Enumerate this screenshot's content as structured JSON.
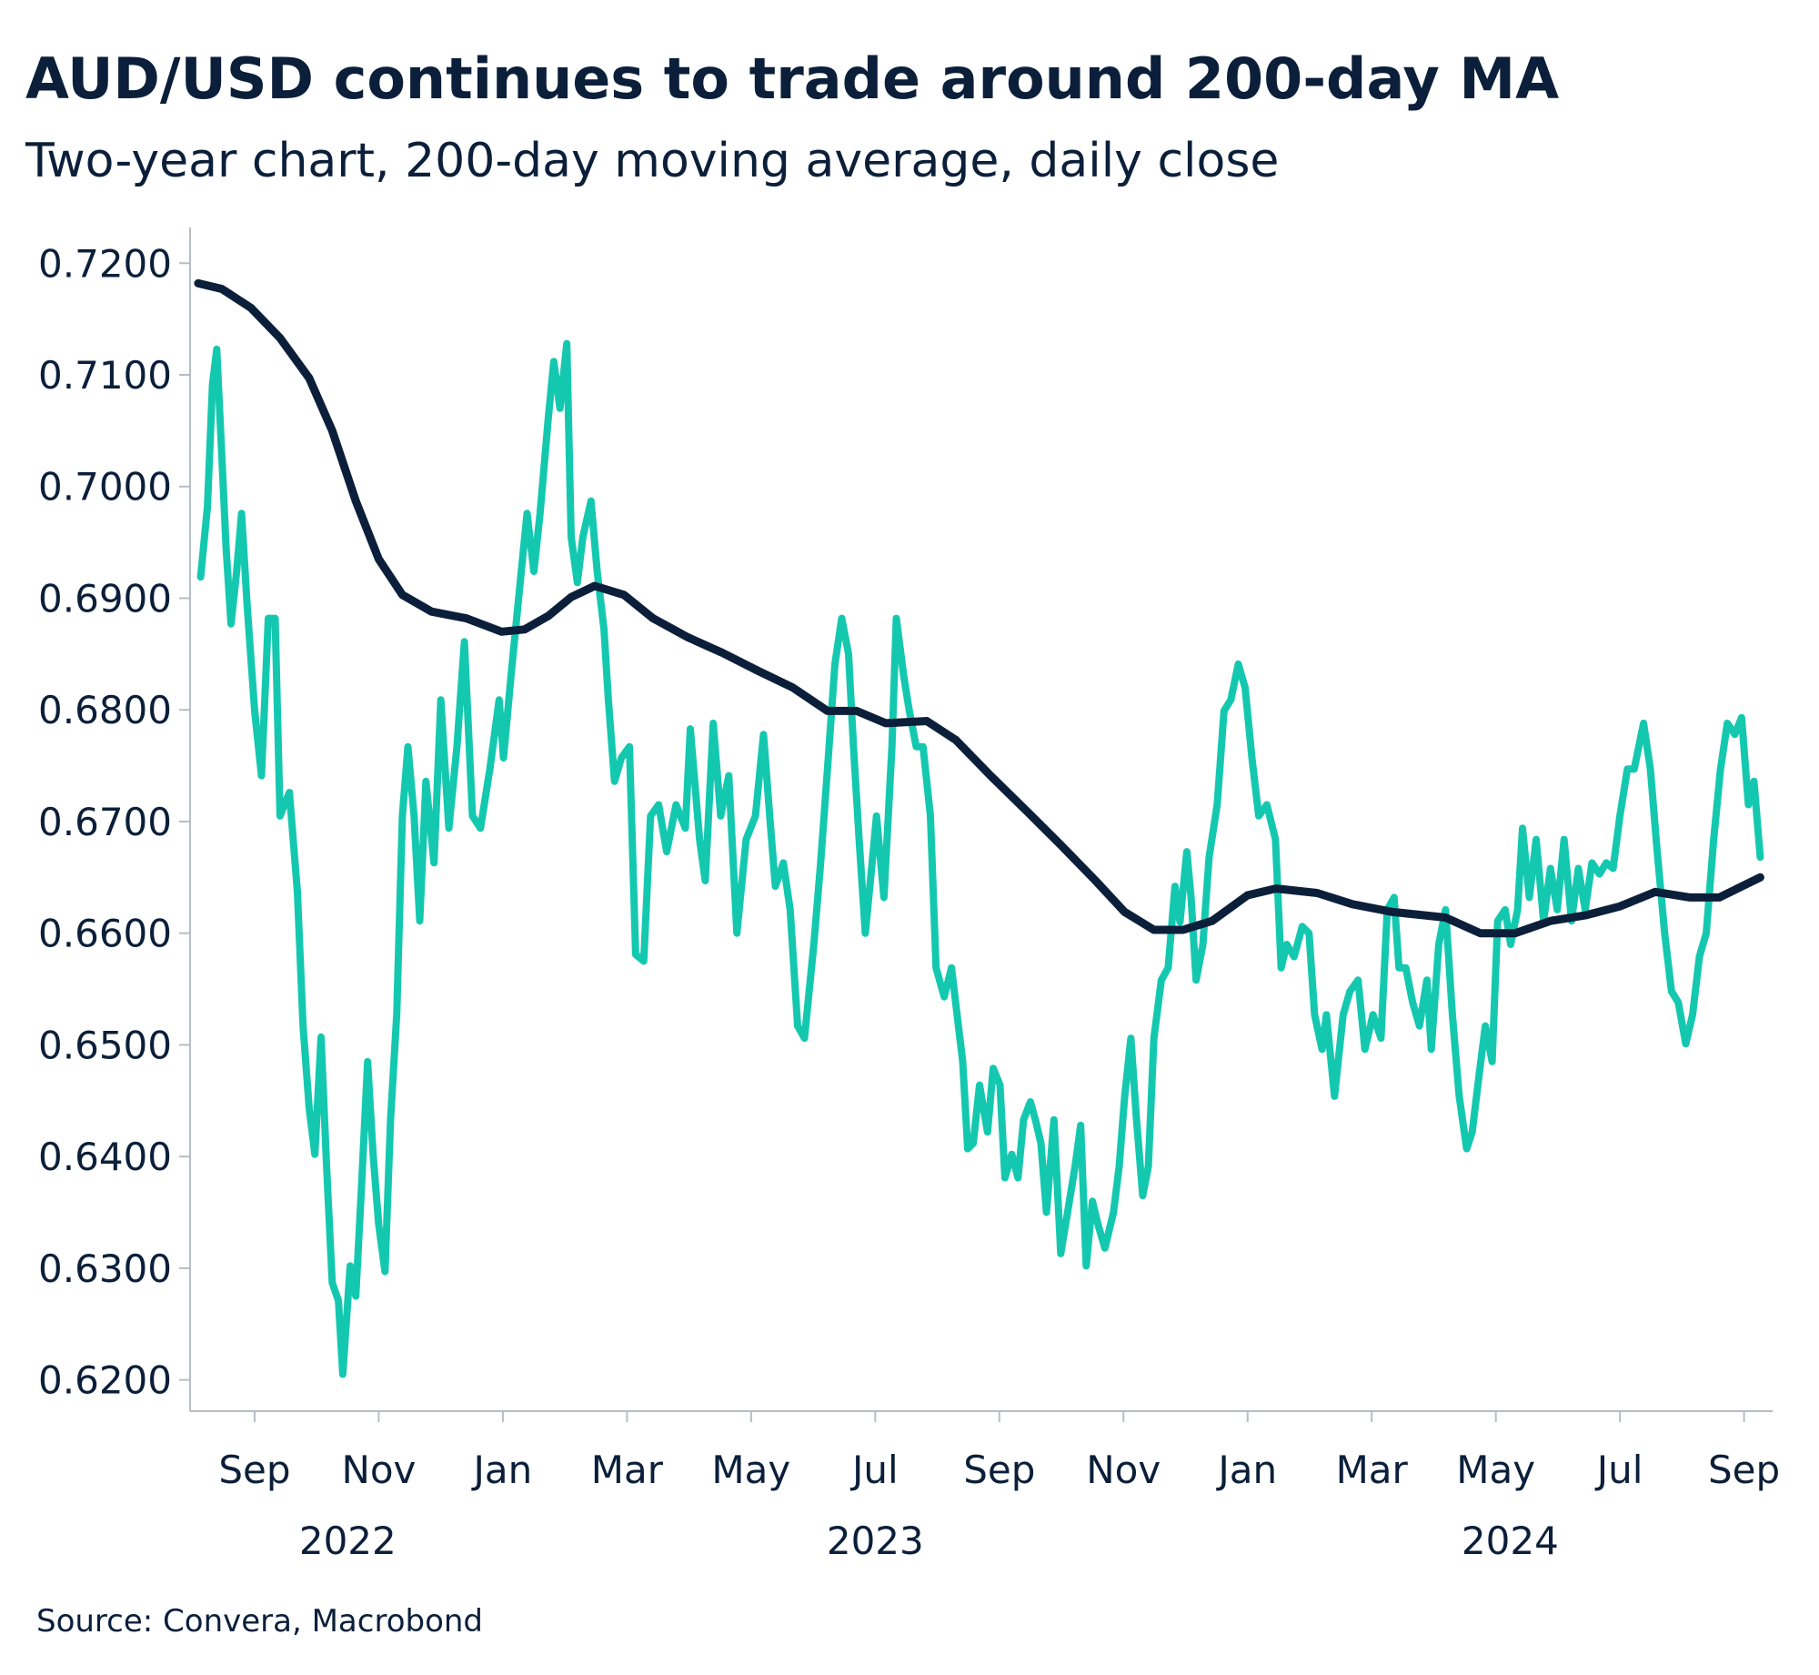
{
  "chart_data": {
    "type": "line",
    "title": "AUD/USD continues to trade around 200-day MA",
    "subtitle": "Two-year chart, 200-day moving average, daily close",
    "source": "Source: Convera, Macrobond",
    "xlim": [
      -0.04,
      25.46
    ],
    "ylim": [
      0.6172,
      0.7232
    ],
    "xticks": [
      {
        "value": 1,
        "label": "Sep"
      },
      {
        "value": 3,
        "label": "Nov"
      },
      {
        "value": 5,
        "label": "Jan"
      },
      {
        "value": 7,
        "label": "Mar"
      },
      {
        "value": 9,
        "label": "May"
      },
      {
        "value": 11,
        "label": "Jul"
      },
      {
        "value": 13,
        "label": "Sep"
      },
      {
        "value": 15,
        "label": "Nov"
      },
      {
        "value": 17,
        "label": "Jan"
      },
      {
        "value": 19,
        "label": "Mar"
      },
      {
        "value": 21,
        "label": "May"
      },
      {
        "value": 23,
        "label": "Jul"
      },
      {
        "value": 25,
        "label": "Sep"
      }
    ],
    "x_groups": [
      {
        "label": "2022",
        "start": 0,
        "end": 5
      },
      {
        "label": "2023",
        "start": 5,
        "end": 17
      },
      {
        "label": "2024",
        "start": 17,
        "end": 25.46
      }
    ],
    "yticks": [
      {
        "value": 0.62,
        "label": "0.6200"
      },
      {
        "value": 0.63,
        "label": "0.6300"
      },
      {
        "value": 0.64,
        "label": "0.6400"
      },
      {
        "value": 0.65,
        "label": "0.6500"
      },
      {
        "value": 0.66,
        "label": "0.6600"
      },
      {
        "value": 0.67,
        "label": "0.6700"
      },
      {
        "value": 0.68,
        "label": "0.6800"
      },
      {
        "value": 0.69,
        "label": "0.6900"
      },
      {
        "value": 0.7,
        "label": "0.7000"
      },
      {
        "value": 0.71,
        "label": "0.7100"
      },
      {
        "value": 0.72,
        "label": "0.7200"
      }
    ],
    "grid": false,
    "series": [
      {
        "color": "#14c8b0",
        "x": [
          0.13,
          0.24,
          0.32,
          0.39,
          0.47,
          0.54,
          0.62,
          0.71,
          0.79,
          0.88,
          1.0,
          1.11,
          1.22,
          1.33,
          1.41,
          1.56,
          1.69,
          1.78,
          1.88,
          1.97,
          2.07,
          2.16,
          2.25,
          2.35,
          2.42,
          2.54,
          2.63,
          2.72,
          2.82,
          2.91,
          3.0,
          3.1,
          3.19,
          3.29,
          3.38,
          3.47,
          3.57,
          3.66,
          3.76,
          3.89,
          4.0,
          4.13,
          4.26,
          4.38,
          4.51,
          4.64,
          4.79,
          4.94,
          5.01,
          5.13,
          5.26,
          5.39,
          5.5,
          5.6,
          5.73,
          5.82,
          5.92,
          6.03,
          6.1,
          6.2,
          6.29,
          6.42,
          6.52,
          6.63,
          6.7,
          6.8,
          6.91,
          7.04,
          7.14,
          7.27,
          7.38,
          7.51,
          7.64,
          7.79,
          7.94,
          8.02,
          8.17,
          8.26,
          8.39,
          8.51,
          8.64,
          8.77,
          8.92,
          9.07,
          9.2,
          9.3,
          9.39,
          9.52,
          9.63,
          9.75,
          9.86,
          10.01,
          10.12,
          10.23,
          10.35,
          10.46,
          10.57,
          10.65,
          10.74,
          10.84,
          10.95,
          11.02,
          11.14,
          11.27,
          11.34,
          11.46,
          11.55,
          11.66,
          11.77,
          11.89,
          11.98,
          12.11,
          12.23,
          12.34,
          12.41,
          12.49,
          12.58,
          12.68,
          12.81,
          12.9,
          13.01,
          13.09,
          13.2,
          13.3,
          13.39,
          13.5,
          13.58,
          13.67,
          13.76,
          13.88,
          13.99,
          14.1,
          14.22,
          14.31,
          14.4,
          14.5,
          14.59,
          14.7,
          14.84,
          14.93,
          15.02,
          15.12,
          15.21,
          15.31,
          15.4,
          15.49,
          15.61,
          15.72,
          15.83,
          15.91,
          16.02,
          16.09,
          16.17,
          16.28,
          16.38,
          16.51,
          16.62,
          16.73,
          16.85,
          16.96,
          17.07,
          17.18,
          17.31,
          17.45,
          17.54,
          17.63,
          17.75,
          17.88,
          17.99,
          18.08,
          18.2,
          18.27,
          18.4,
          18.54,
          18.65,
          18.78,
          18.89,
          19.02,
          19.15,
          19.25,
          19.36,
          19.44,
          19.55,
          19.66,
          19.77,
          19.89,
          19.96,
          20.08,
          20.19,
          20.3,
          20.41,
          20.53,
          20.62,
          20.71,
          20.83,
          20.94,
          21.03,
          21.15,
          21.24,
          21.35,
          21.43,
          21.54,
          21.65,
          21.77,
          21.88,
          21.99,
          22.1,
          22.22,
          22.33,
          22.44,
          22.55,
          22.67,
          22.78,
          22.89,
          23.0,
          23.12,
          23.23,
          23.38,
          23.49,
          23.6,
          23.72,
          23.83,
          23.94,
          24.06,
          24.17,
          24.28,
          24.39,
          24.51,
          24.62,
          24.73,
          24.85,
          24.96,
          25.07,
          25.16,
          25.26
        ],
        "values": [
          0.6919,
          0.6982,
          0.7091,
          0.7123,
          0.7029,
          0.6945,
          0.6877,
          0.6924,
          0.6976,
          0.6893,
          0.6799,
          0.6741,
          0.6882,
          0.6882,
          0.6705,
          0.6726,
          0.6637,
          0.6517,
          0.6443,
          0.6402,
          0.6507,
          0.6391,
          0.6287,
          0.6271,
          0.6205,
          0.6302,
          0.6275,
          0.637,
          0.6485,
          0.6401,
          0.6339,
          0.6297,
          0.6433,
          0.6527,
          0.6705,
          0.6767,
          0.6705,
          0.6611,
          0.6736,
          0.6663,
          0.6809,
          0.6694,
          0.6767,
          0.6861,
          0.6705,
          0.6694,
          0.6747,
          0.6809,
          0.6757,
          0.683,
          0.6903,
          0.6976,
          0.6924,
          0.6976,
          0.706,
          0.7112,
          0.707,
          0.7128,
          0.6955,
          0.6914,
          0.6955,
          0.6987,
          0.6924,
          0.6872,
          0.6809,
          0.6736,
          0.6757,
          0.6767,
          0.6581,
          0.6575,
          0.6705,
          0.6715,
          0.6673,
          0.6715,
          0.6694,
          0.6783,
          0.6684,
          0.6647,
          0.6788,
          0.6705,
          0.6741,
          0.66,
          0.6684,
          0.6705,
          0.6778,
          0.6705,
          0.6642,
          0.6663,
          0.6621,
          0.6517,
          0.6506,
          0.659,
          0.6663,
          0.6747,
          0.6841,
          0.6882,
          0.685,
          0.6767,
          0.6684,
          0.66,
          0.6663,
          0.6705,
          0.6632,
          0.6767,
          0.6882,
          0.683,
          0.6799,
          0.6767,
          0.6767,
          0.6705,
          0.6569,
          0.6543,
          0.6569,
          0.6517,
          0.6485,
          0.6407,
          0.6412,
          0.6464,
          0.6422,
          0.6479,
          0.6464,
          0.6381,
          0.6402,
          0.6381,
          0.6433,
          0.6449,
          0.6433,
          0.6412,
          0.635,
          0.6433,
          0.6313,
          0.635,
          0.6391,
          0.6428,
          0.6302,
          0.636,
          0.6339,
          0.6318,
          0.635,
          0.6391,
          0.6454,
          0.6506,
          0.6433,
          0.6365,
          0.6391,
          0.6506,
          0.6558,
          0.6569,
          0.6642,
          0.661,
          0.6673,
          0.6632,
          0.6558,
          0.659,
          0.6668,
          0.6715,
          0.6799,
          0.6809,
          0.6841,
          0.682,
          0.6757,
          0.6705,
          0.6715,
          0.6684,
          0.6569,
          0.659,
          0.6579,
          0.6606,
          0.66,
          0.6527,
          0.6496,
          0.6527,
          0.6454,
          0.6527,
          0.6548,
          0.6558,
          0.6496,
          0.6527,
          0.6506,
          0.6621,
          0.6632,
          0.6569,
          0.6569,
          0.6538,
          0.6517,
          0.6558,
          0.6496,
          0.659,
          0.6621,
          0.6527,
          0.6454,
          0.6407,
          0.6422,
          0.6464,
          0.6517,
          0.6485,
          0.6611,
          0.6621,
          0.659,
          0.6621,
          0.6694,
          0.6632,
          0.6684,
          0.6611,
          0.6658,
          0.6621,
          0.6684,
          0.6611,
          0.6658,
          0.6621,
          0.6663,
          0.6653,
          0.6663,
          0.6658,
          0.6705,
          0.6747,
          0.6747,
          0.6788,
          0.6747,
          0.6673,
          0.66,
          0.6548,
          0.6538,
          0.6501,
          0.6527,
          0.6579,
          0.66,
          0.6684,
          0.6747,
          0.6788,
          0.6778,
          0.6793,
          0.6715,
          0.6736,
          0.6668
        ]
      },
      {
        "color": "#0b1f3a",
        "x": [
          0.09,
          0.47,
          0.94,
          1.41,
          1.88,
          2.25,
          2.63,
          3.0,
          3.38,
          3.85,
          4.41,
          4.98,
          5.35,
          5.73,
          6.1,
          6.48,
          6.95,
          7.42,
          7.98,
          8.54,
          9.11,
          9.67,
          10.23,
          10.7,
          11.17,
          11.83,
          12.3,
          12.86,
          13.43,
          13.99,
          14.55,
          15.02,
          15.49,
          15.96,
          16.43,
          17.0,
          17.46,
          18.12,
          18.69,
          19.34,
          20.19,
          20.75,
          21.31,
          21.88,
          22.44,
          23.0,
          23.57,
          24.13,
          24.6,
          25.26
        ],
        "values": [
          0.7182,
          0.7177,
          0.716,
          0.7133,
          0.7097,
          0.705,
          0.6987,
          0.6935,
          0.6903,
          0.6888,
          0.6882,
          0.687,
          0.6872,
          0.6884,
          0.6901,
          0.6911,
          0.6903,
          0.6882,
          0.6865,
          0.6851,
          0.6835,
          0.682,
          0.6799,
          0.6799,
          0.6788,
          0.679,
          0.6773,
          0.6741,
          0.671,
          0.6679,
          0.6647,
          0.6619,
          0.6603,
          0.6603,
          0.6611,
          0.6634,
          0.664,
          0.6636,
          0.6626,
          0.6619,
          0.6614,
          0.66,
          0.66,
          0.6611,
          0.6616,
          0.6624,
          0.6637,
          0.6632,
          0.6632,
          0.665
        ]
      }
    ]
  }
}
